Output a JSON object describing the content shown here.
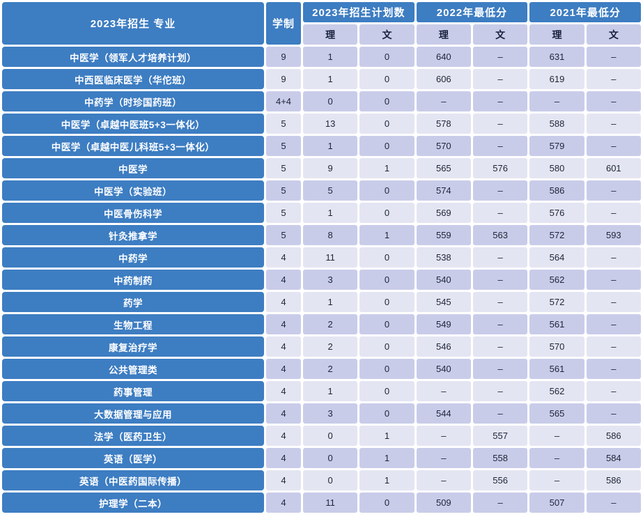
{
  "chart_data": {
    "type": "table",
    "header": {
      "major": "2023年招生 专业",
      "duration": "学制",
      "groups": [
        "2023年招生计划数",
        "2022年最低分",
        "2021年最低分"
      ],
      "sub_science": "理",
      "sub_liberal": "文"
    },
    "rows": [
      {
        "major": "中医学（领军人才培养计划）",
        "duration": "9",
        "plan_sci": "1",
        "plan_lib": "0",
        "min2022_sci": "640",
        "min2022_lib": "–",
        "min2021_sci": "631",
        "min2021_lib": "–"
      },
      {
        "major": "中西医临床医学（华佗班）",
        "duration": "9",
        "plan_sci": "1",
        "plan_lib": "0",
        "min2022_sci": "606",
        "min2022_lib": "–",
        "min2021_sci": "619",
        "min2021_lib": "–"
      },
      {
        "major": "中药学（时珍国药班）",
        "duration": "4+4",
        "plan_sci": "0",
        "plan_lib": "0",
        "min2022_sci": "–",
        "min2022_lib": "–",
        "min2021_sci": "–",
        "min2021_lib": "–"
      },
      {
        "major": "中医学（卓越中医班5+3一体化）",
        "duration": "5",
        "plan_sci": "13",
        "plan_lib": "0",
        "min2022_sci": "578",
        "min2022_lib": "–",
        "min2021_sci": "588",
        "min2021_lib": "–"
      },
      {
        "major": "中医学（卓越中医儿科班5+3一体化）",
        "duration": "5",
        "plan_sci": "1",
        "plan_lib": "0",
        "min2022_sci": "570",
        "min2022_lib": "–",
        "min2021_sci": "579",
        "min2021_lib": "–"
      },
      {
        "major": "中医学",
        "duration": "5",
        "plan_sci": "9",
        "plan_lib": "1",
        "min2022_sci": "565",
        "min2022_lib": "576",
        "min2021_sci": "580",
        "min2021_lib": "601"
      },
      {
        "major": "中医学（实验班）",
        "duration": "5",
        "plan_sci": "5",
        "plan_lib": "0",
        "min2022_sci": "574",
        "min2022_lib": "–",
        "min2021_sci": "586",
        "min2021_lib": "–"
      },
      {
        "major": "中医骨伤科学",
        "duration": "5",
        "plan_sci": "1",
        "plan_lib": "0",
        "min2022_sci": "569",
        "min2022_lib": "–",
        "min2021_sci": "576",
        "min2021_lib": "–"
      },
      {
        "major": "针灸推拿学",
        "duration": "5",
        "plan_sci": "8",
        "plan_lib": "1",
        "min2022_sci": "559",
        "min2022_lib": "563",
        "min2021_sci": "572",
        "min2021_lib": "593"
      },
      {
        "major": "中药学",
        "duration": "4",
        "plan_sci": "11",
        "plan_lib": "0",
        "min2022_sci": "538",
        "min2022_lib": "–",
        "min2021_sci": "564",
        "min2021_lib": "–"
      },
      {
        "major": "中药制药",
        "duration": "4",
        "plan_sci": "3",
        "plan_lib": "0",
        "min2022_sci": "540",
        "min2022_lib": "–",
        "min2021_sci": "562",
        "min2021_lib": "–"
      },
      {
        "major": "药学",
        "duration": "4",
        "plan_sci": "1",
        "plan_lib": "0",
        "min2022_sci": "545",
        "min2022_lib": "–",
        "min2021_sci": "572",
        "min2021_lib": "–"
      },
      {
        "major": "生物工程",
        "duration": "4",
        "plan_sci": "2",
        "plan_lib": "0",
        "min2022_sci": "549",
        "min2022_lib": "–",
        "min2021_sci": "561",
        "min2021_lib": "–"
      },
      {
        "major": "康复治疗学",
        "duration": "4",
        "plan_sci": "2",
        "plan_lib": "0",
        "min2022_sci": "546",
        "min2022_lib": "–",
        "min2021_sci": "570",
        "min2021_lib": "–"
      },
      {
        "major": "公共管理类",
        "duration": "4",
        "plan_sci": "2",
        "plan_lib": "0",
        "min2022_sci": "540",
        "min2022_lib": "–",
        "min2021_sci": "561",
        "min2021_lib": "–"
      },
      {
        "major": "药事管理",
        "duration": "4",
        "plan_sci": "1",
        "plan_lib": "0",
        "min2022_sci": "–",
        "min2022_lib": "–",
        "min2021_sci": "562",
        "min2021_lib": "–"
      },
      {
        "major": "大数据管理与应用",
        "duration": "4",
        "plan_sci": "3",
        "plan_lib": "0",
        "min2022_sci": "544",
        "min2022_lib": "–",
        "min2021_sci": "565",
        "min2021_lib": "–"
      },
      {
        "major": "法学（医药卫生）",
        "duration": "4",
        "plan_sci": "0",
        "plan_lib": "1",
        "min2022_sci": "–",
        "min2022_lib": "557",
        "min2021_sci": "–",
        "min2021_lib": "586"
      },
      {
        "major": "英语（医学）",
        "duration": "4",
        "plan_sci": "0",
        "plan_lib": "1",
        "min2022_sci": "–",
        "min2022_lib": "558",
        "min2021_sci": "–",
        "min2021_lib": "584"
      },
      {
        "major": "英语（中医药国际传播）",
        "duration": "4",
        "plan_sci": "0",
        "plan_lib": "1",
        "min2022_sci": "–",
        "min2022_lib": "556",
        "min2021_sci": "–",
        "min2021_lib": "586"
      },
      {
        "major": "护理学（二本）",
        "duration": "4",
        "plan_sci": "11",
        "plan_lib": "0",
        "min2022_sci": "509",
        "min2022_lib": "–",
        "min2021_sci": "507",
        "min2021_lib": "–"
      }
    ]
  },
  "colors": {
    "header_blue": "#3d7dc2",
    "row_dark_lavender": "#c9cce9",
    "row_light_lavender": "#e4e5f2",
    "text_dark": "#1d2538",
    "text_white": "#ffffff",
    "gap_white": "#ffffff"
  }
}
